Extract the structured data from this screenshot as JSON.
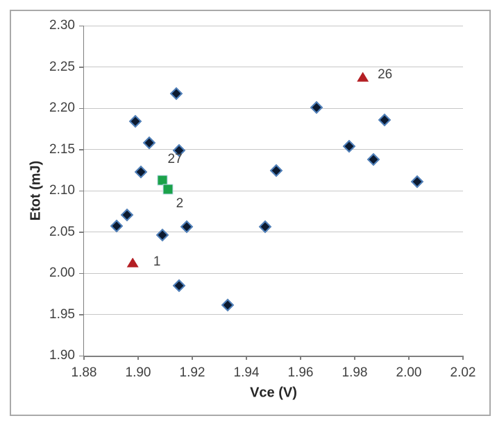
{
  "chart_data": {
    "type": "scatter",
    "title": "",
    "xlabel": "Vce (V)",
    "ylabel": "Etot (mJ)",
    "x_axis": {
      "min": 1.88,
      "max": 2.02,
      "tick_values": [
        1.88,
        1.9,
        1.92,
        1.94,
        1.96,
        1.98,
        2.0,
        2.02
      ],
      "tick_labels": [
        "1.88",
        "1.90",
        "1.92",
        "1.94",
        "1.96",
        "1.98",
        "2.00",
        "2.02"
      ]
    },
    "y_axis": {
      "min": 1.9,
      "max": 2.3,
      "tick_values": [
        1.9,
        1.95,
        2.0,
        2.05,
        2.1,
        2.15,
        2.2,
        2.25,
        2.3
      ],
      "tick_labels": [
        "1.90",
        "1.95",
        "2.00",
        "2.05",
        "2.10",
        "2.15",
        "2.20",
        "2.25",
        "2.30"
      ]
    },
    "grid": {
      "horizontal": true,
      "vertical": false
    },
    "legend": "none",
    "series": [
      {
        "name": "diamond-points",
        "marker": "diamond",
        "fill": "#0c1a30",
        "stroke": "#4f81bd",
        "points": [
          {
            "x": 1.892,
            "y": 2.057
          },
          {
            "x": 1.896,
            "y": 2.071
          },
          {
            "x": 1.899,
            "y": 2.184
          },
          {
            "x": 1.901,
            "y": 2.123
          },
          {
            "x": 1.904,
            "y": 2.158
          },
          {
            "x": 1.909,
            "y": 2.046
          },
          {
            "x": 1.914,
            "y": 2.218
          },
          {
            "x": 1.915,
            "y": 2.149
          },
          {
            "x": 1.915,
            "y": 1.985
          },
          {
            "x": 1.918,
            "y": 2.056
          },
          {
            "x": 1.933,
            "y": 1.961
          },
          {
            "x": 1.947,
            "y": 2.056
          },
          {
            "x": 1.951,
            "y": 2.124
          },
          {
            "x": 1.966,
            "y": 2.201
          },
          {
            "x": 1.978,
            "y": 2.154
          },
          {
            "x": 1.987,
            "y": 2.138
          },
          {
            "x": 1.991,
            "y": 2.186
          },
          {
            "x": 2.003,
            "y": 2.111
          }
        ]
      },
      {
        "name": "square-points",
        "marker": "square",
        "fill": "#1ba24a",
        "stroke": "#c2d9ee",
        "points": [
          {
            "x": 1.909,
            "y": 2.113,
            "label": "27",
            "label_dx": 18,
            "label_dy": -30
          },
          {
            "x": 1.911,
            "y": 2.102,
            "label": "2",
            "label_dx": 17,
            "label_dy": 21
          }
        ]
      },
      {
        "name": "triangle-points",
        "marker": "triangle",
        "fill": "#b41f24",
        "stroke": "#b41f24",
        "points": [
          {
            "x": 1.898,
            "y": 2.013,
            "label": "1",
            "label_dx": 35,
            "label_dy": -1
          },
          {
            "x": 1.983,
            "y": 2.238,
            "label": "26",
            "label_dx": 32,
            "label_dy": -3
          }
        ]
      }
    ],
    "colors": {
      "gridline": "#c7c7c7",
      "axis": "#7f7f7f",
      "tick_text": "#3f3f3f",
      "title_text": "#262626",
      "frame_border": "#a9a9a9",
      "background": "#ffffff"
    }
  }
}
